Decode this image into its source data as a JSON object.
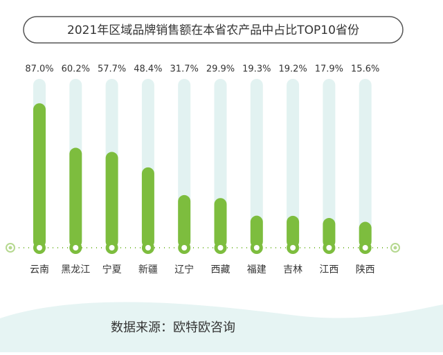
{
  "chart_data": {
    "type": "bar",
    "title": "2021年区域品牌销售额在本省农产品中占比TOP10省份",
    "categories": [
      "云南",
      "黑龙江",
      "宁夏",
      "新疆",
      "辽宁",
      "西藏",
      "福建",
      "吉林",
      "江西",
      "陕西"
    ],
    "values": [
      87.0,
      60.2,
      57.7,
      48.4,
      31.7,
      29.9,
      19.3,
      19.2,
      17.9,
      15.6
    ],
    "value_labels": [
      "87.0%",
      "60.2%",
      "57.7%",
      "48.4%",
      "31.7%",
      "29.9%",
      "19.3%",
      "19.2%",
      "17.9%",
      "15.6%"
    ],
    "color": "#7dbd3e",
    "ylim": [
      0,
      100
    ],
    "source": "数据来源：欧特欧咨询"
  }
}
